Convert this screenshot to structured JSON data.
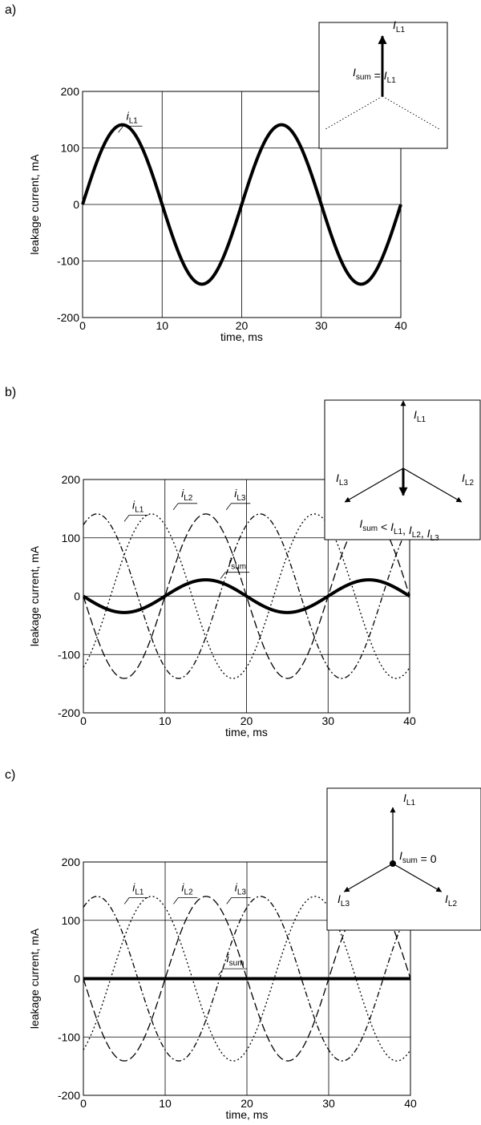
{
  "chart_data": [
    {
      "type": "line",
      "panel_label": "a)",
      "xlabel": "time, ms",
      "ylabel": "leakage current, mA",
      "xlim": [
        0,
        40
      ],
      "ylim": [
        -200,
        200
      ],
      "x_ticks": [
        0,
        10,
        20,
        30,
        40
      ],
      "y_ticks": [
        200,
        100,
        0,
        -100,
        -200
      ],
      "grid": true,
      "series": [
        {
          "name": "iL1",
          "amplitude": 141,
          "period_ms": 20,
          "phase_deg": 0,
          "style": "solid-thick",
          "label": {
            "main": "i",
            "sub": "L1",
            "at": [
              5.5,
              150
            ]
          }
        }
      ],
      "inset": {
        "position": "top-right",
        "phasors": [
          {
            "name": "IL1",
            "main": "I",
            "sub": "L1",
            "angle_deg": 90,
            "length": 1.0,
            "style": "solid-thick-arrow"
          },
          {
            "name": "L2",
            "angle_deg": -30,
            "length": 1.1,
            "style": "dotted"
          },
          {
            "name": "L3",
            "angle_deg": 210,
            "length": 1.1,
            "style": "dotted"
          }
        ],
        "annotation": {
          "parts": [
            [
              "I",
              "sum"
            ],
            [
              " = "
            ],
            [
              "I",
              "L1"
            ]
          ]
        }
      }
    },
    {
      "type": "line",
      "panel_label": "b)",
      "xlabel": "time, ms",
      "ylabel": "leakage current, mA",
      "xlim": [
        0,
        40
      ],
      "ylim": [
        -200,
        200
      ],
      "x_ticks": [
        0,
        10,
        20,
        30,
        40
      ],
      "y_ticks": [
        200,
        100,
        0,
        -100,
        -200
      ],
      "grid": true,
      "series": [
        {
          "name": "iL1",
          "amplitude": 141,
          "period_ms": 20,
          "phase_deg": 60,
          "style": "dashdot",
          "label": {
            "main": "i",
            "sub": "L1",
            "at": [
              6,
              150
            ]
          }
        },
        {
          "name": "iL2",
          "amplitude": 141,
          "period_ms": 20,
          "phase_deg": -60,
          "style": "dotted",
          "label": {
            "main": "i",
            "sub": "L2",
            "at": [
              12,
              170
            ]
          }
        },
        {
          "name": "iL3",
          "amplitude": 141,
          "period_ms": 20,
          "phase_deg": 180,
          "style": "dashed",
          "label": {
            "main": "i",
            "sub": "L3",
            "at": [
              18.5,
              170
            ]
          }
        },
        {
          "name": "isum",
          "amplitude": 28,
          "period_ms": 20,
          "phase_deg": 180,
          "style": "solid-thick",
          "label": {
            "main": "i",
            "sub": "sum",
            "at": [
              17.8,
              52
            ]
          }
        }
      ],
      "inset": {
        "position": "top-right",
        "phasors": [
          {
            "name": "IL1",
            "main": "I",
            "sub": "L1",
            "angle_deg": 90,
            "length": 1.0,
            "style": "solid-arrow"
          },
          {
            "name": "IL2",
            "main": "I",
            "sub": "L2",
            "angle_deg": -30,
            "length": 1.0,
            "style": "solid-arrow"
          },
          {
            "name": "IL3",
            "main": "I",
            "sub": "L3",
            "angle_deg": 210,
            "length": 1.0,
            "style": "solid-arrow"
          },
          {
            "name": "Isum",
            "angle_deg": -90,
            "length": 0.4,
            "style": "solid-thick-arrow"
          }
        ],
        "annotation": {
          "parts": [
            [
              "I",
              "sum"
            ],
            [
              " < "
            ],
            [
              "I",
              "L1"
            ],
            [
              ", "
            ],
            [
              "I",
              "L2"
            ],
            [
              ", "
            ],
            [
              "I",
              "L3"
            ]
          ]
        }
      }
    },
    {
      "type": "line",
      "panel_label": "c)",
      "xlabel": "time, ms",
      "ylabel": "leakage current, mA",
      "xlim": [
        0,
        40
      ],
      "ylim": [
        -200,
        200
      ],
      "x_ticks": [
        0,
        10,
        20,
        30,
        40
      ],
      "y_ticks": [
        200,
        100,
        0,
        -100,
        -200
      ],
      "grid": true,
      "series": [
        {
          "name": "iL1",
          "amplitude": 141,
          "period_ms": 20,
          "phase_deg": 60,
          "style": "dashdot",
          "label": {
            "main": "i",
            "sub": "L1",
            "at": [
              6,
              150
            ]
          }
        },
        {
          "name": "iL2",
          "amplitude": 141,
          "period_ms": 20,
          "phase_deg": -60,
          "style": "dotted",
          "label": {
            "main": "i",
            "sub": "L2",
            "at": [
              12,
              150
            ]
          }
        },
        {
          "name": "iL3",
          "amplitude": 141,
          "period_ms": 20,
          "phase_deg": 180,
          "style": "dashed",
          "label": {
            "main": "i",
            "sub": "L3",
            "at": [
              18.5,
              150
            ]
          }
        },
        {
          "name": "isum",
          "amplitude": 0,
          "period_ms": 20,
          "phase_deg": 0,
          "style": "solid-thick",
          "label": {
            "main": "i",
            "sub": "sum",
            "at": [
              17.5,
              28
            ]
          }
        }
      ],
      "inset": {
        "position": "top-right",
        "phasors": [
          {
            "name": "IL1",
            "main": "I",
            "sub": "L1",
            "angle_deg": 90,
            "length": 1.0,
            "style": "solid-arrow"
          },
          {
            "name": "IL2",
            "main": "I",
            "sub": "L2",
            "angle_deg": -30,
            "length": 1.0,
            "style": "solid-arrow"
          },
          {
            "name": "IL3",
            "main": "I",
            "sub": "L3",
            "angle_deg": 210,
            "length": 1.0,
            "style": "solid-arrow"
          }
        ],
        "origin_dot": true,
        "annotation": {
          "parts": [
            [
              "I",
              "sum"
            ],
            [
              " = 0"
            ]
          ]
        }
      }
    }
  ]
}
